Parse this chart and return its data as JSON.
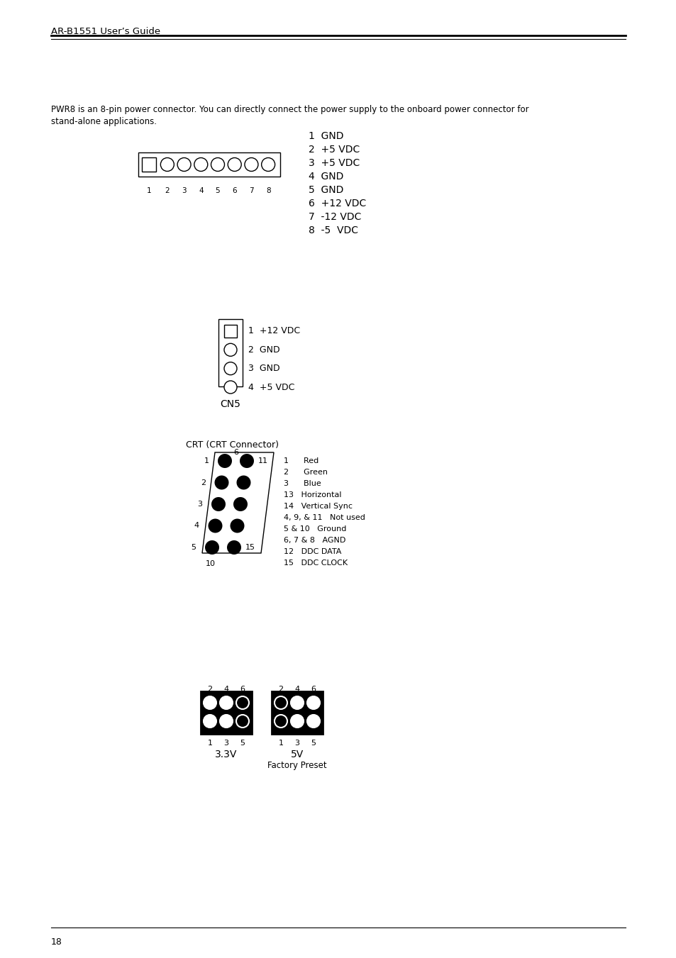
{
  "header_title": "AR-B1551 User’s Guide",
  "page_number": "18",
  "pwr8_line1": "PWR8 is an 8-pin power connector. You can directly connect the power supply to the onboard power connector for",
  "pwr8_line2": "stand-alone applications.",
  "pwr8_pins": [
    "1  GND",
    "2  +5 VDC",
    "3  +5 VDC",
    "4  GND",
    "5  GND",
    "6  +12 VDC",
    "7  -12 VDC",
    "8  -5  VDC"
  ],
  "cn5_pins": [
    "1  +12 VDC",
    "2  GND",
    "3  GND",
    "4  +5 VDC"
  ],
  "cn5_label": "CN5",
  "crt_title": "CRT (CRT Connector)",
  "crt_desc": [
    "1      Red",
    "2      Green",
    "3      Blue",
    "13   Horizontal",
    "14   Vertical Sync",
    "4, 9, & 11   Not used",
    "5 & 10   Ground",
    "6, 7 & 8   AGND",
    "12   DDC DATA",
    "15   DDC CLOCK"
  ],
  "crt_row_labels_left": [
    "1",
    "2",
    "3",
    "4",
    "5"
  ],
  "crt_label_11": "11",
  "crt_label_15": "15",
  "crt_label_6": "6",
  "crt_label_10": "10",
  "jp2_top_labels_left": [
    "2",
    "4",
    "6"
  ],
  "jp2_top_labels_right": [
    "2",
    "4",
    "6"
  ],
  "jp2_bottom_labels_left": [
    "1",
    "3",
    "5"
  ],
  "jp2_bottom_labels_right": [
    "1",
    "3",
    "5"
  ],
  "jp2_label_left": "3.3V",
  "jp2_label_right": "5V",
  "jp2_label_right2": "Factory Preset",
  "bg_color": "#ffffff",
  "text_color": "#000000"
}
